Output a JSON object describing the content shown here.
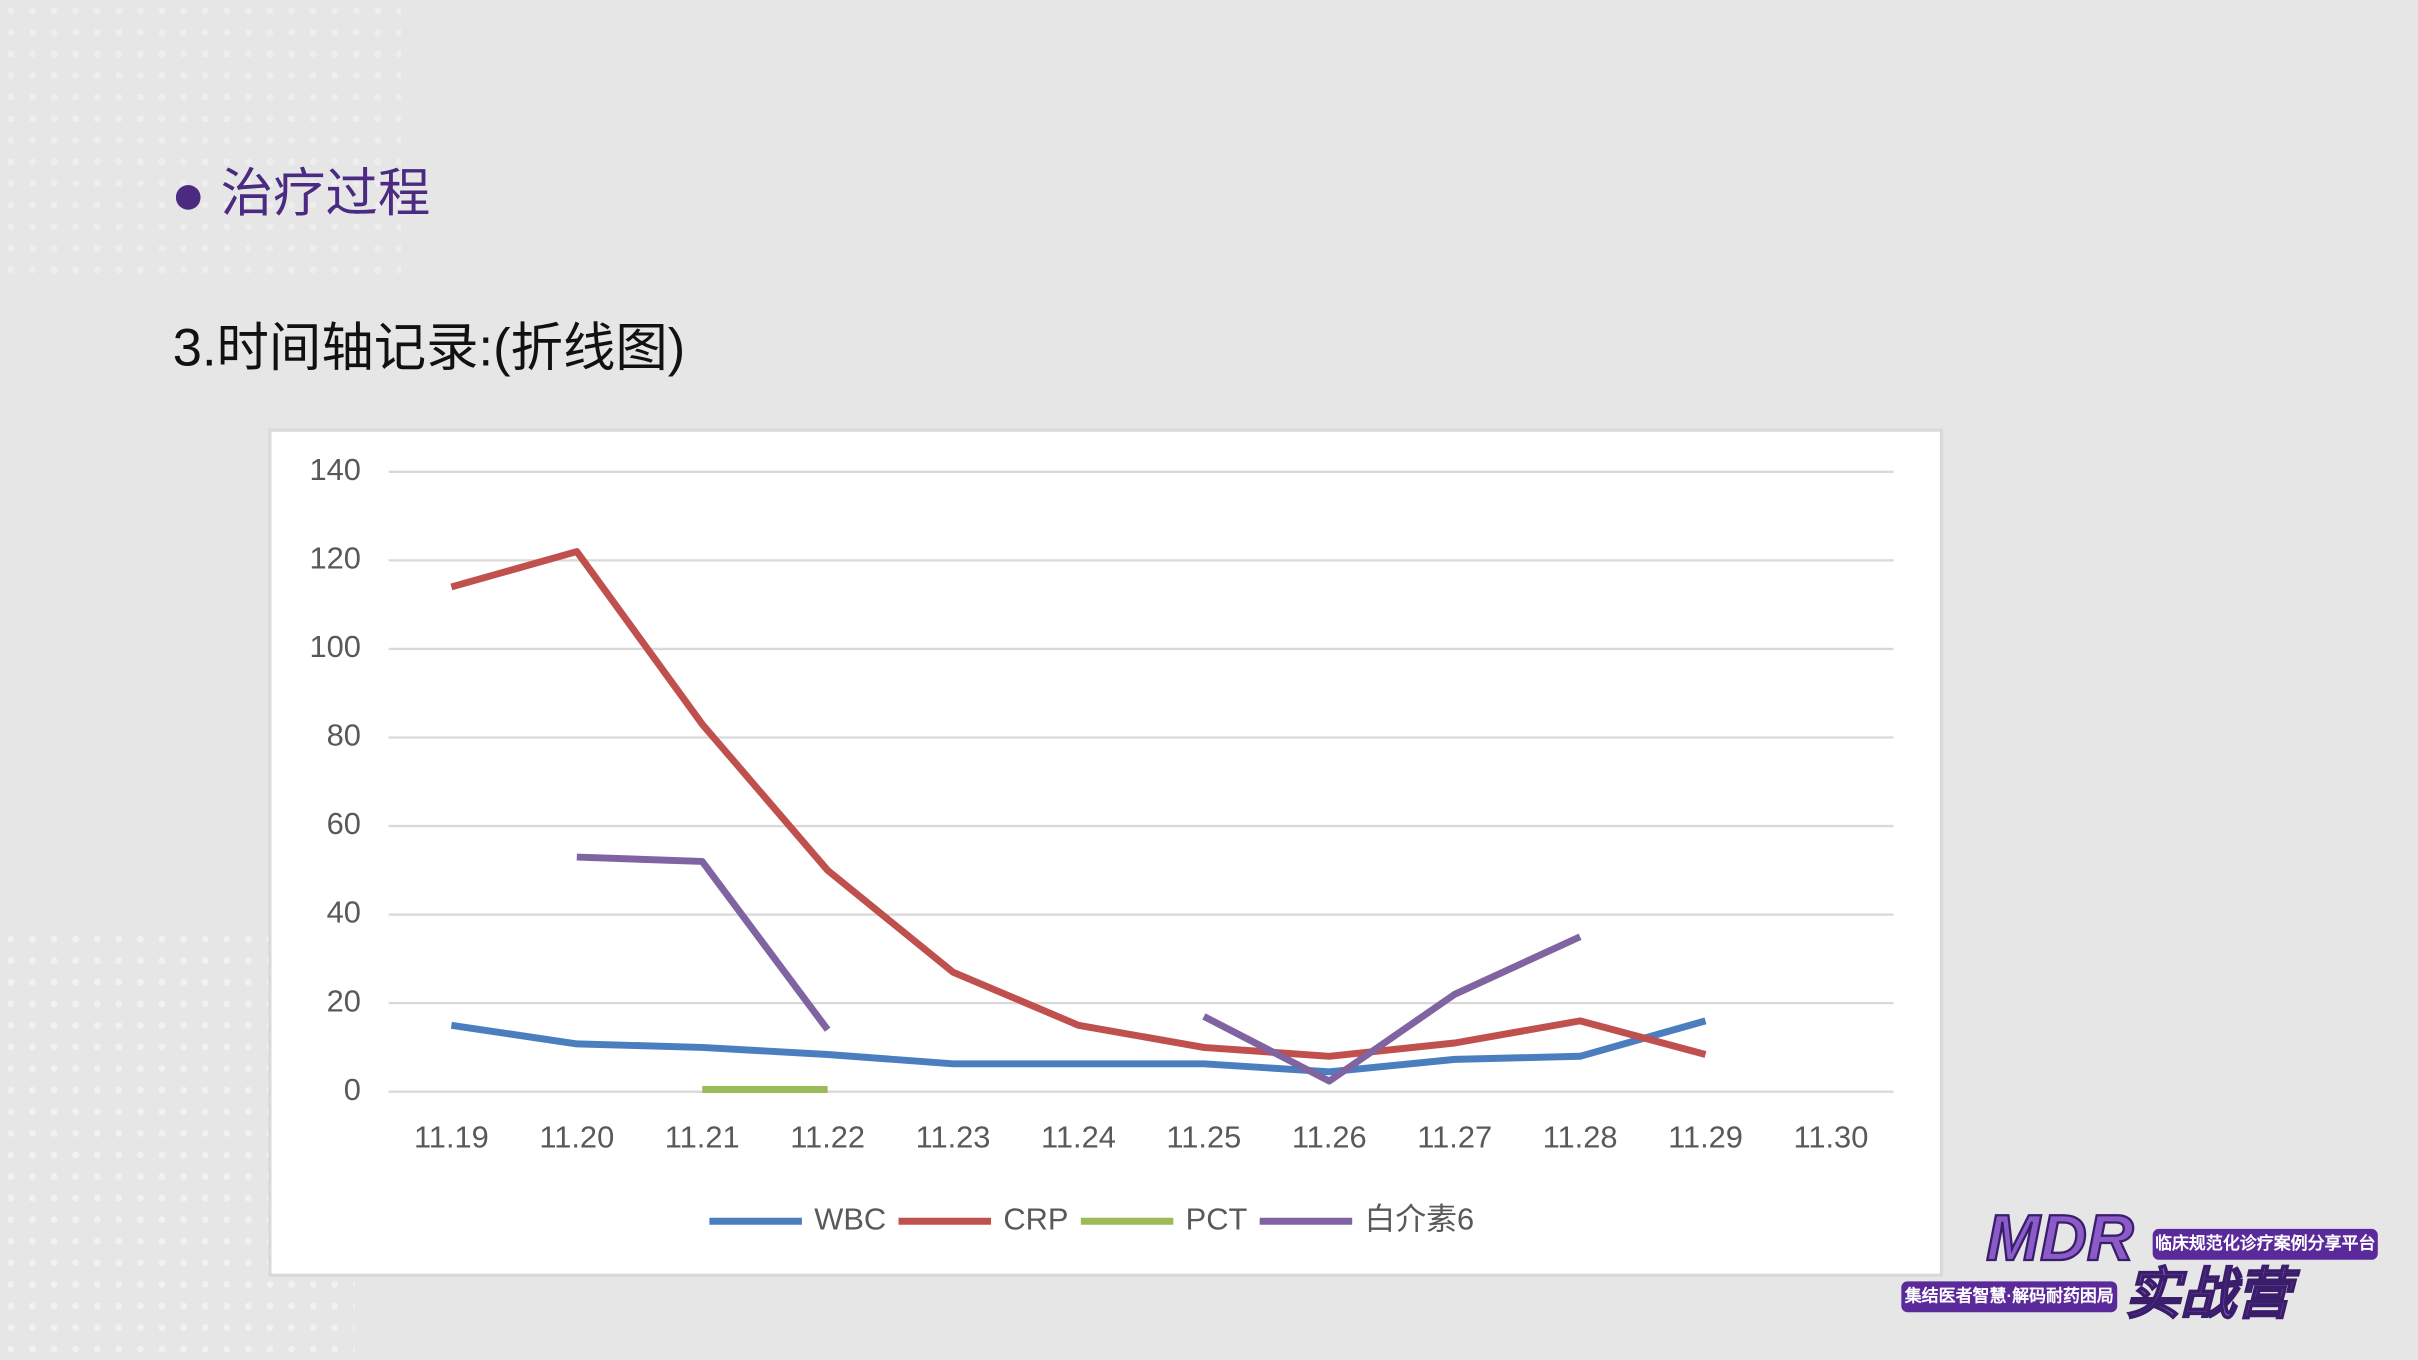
{
  "slide": {
    "heading": "治疗过程",
    "subheading": "3.时间轴记录:(折线图)",
    "logo": {
      "brand": "MDR",
      "tagline": "临床规范化诊疗案例分享平台",
      "slogan": "集结医者智慧·解码耐药困局",
      "name": "实战营"
    }
  },
  "chart_data": {
    "type": "line",
    "categories": [
      "11.19",
      "11.20",
      "11.21",
      "11.22",
      "11.23",
      "11.24",
      "11.25",
      "11.26",
      "11.27",
      "11.28",
      "11.29",
      "11.30"
    ],
    "series": [
      {
        "name": "WBC",
        "color": "#4a7ebf",
        "values": [
          15,
          10.8,
          10,
          8.4,
          6.3,
          6.3,
          6.3,
          4.5,
          7.3,
          8,
          16,
          null
        ]
      },
      {
        "name": "CRP",
        "color": "#c0504d",
        "values": [
          114,
          122,
          83,
          50,
          27,
          15,
          10,
          8,
          11,
          16,
          8.4,
          null
        ]
      },
      {
        "name": "PCT",
        "color": "#9bbb59",
        "values": [
          null,
          null,
          0.5,
          0.5,
          null,
          null,
          null,
          null,
          null,
          null,
          null,
          null
        ]
      },
      {
        "name": "白介素6",
        "color": "#8064a2",
        "values": [
          null,
          53,
          52,
          14,
          null,
          null,
          17,
          2.4,
          22,
          35,
          null,
          null
        ]
      }
    ],
    "ylim": [
      0,
      140
    ],
    "yticks": [
      0,
      20,
      40,
      60,
      80,
      100,
      120,
      140
    ],
    "grid": true,
    "legend": "bottom"
  }
}
